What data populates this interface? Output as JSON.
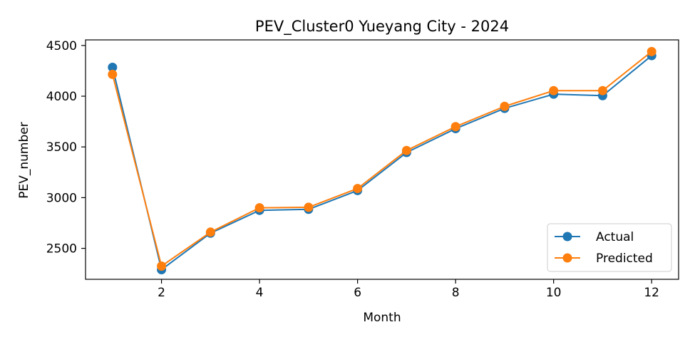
{
  "chart_data": {
    "type": "line",
    "title": "PEV_Cluster0 Yueyang City - 2024",
    "xlabel": "Month",
    "ylabel": "PEV_number",
    "x": [
      1,
      2,
      3,
      4,
      5,
      6,
      7,
      8,
      9,
      10,
      11,
      12
    ],
    "xlim": [
      0.45,
      12.55
    ],
    "ylim": [
      2195,
      4555
    ],
    "xticks": [
      2,
      4,
      6,
      8,
      10,
      12
    ],
    "yticks": [
      2500,
      3000,
      3500,
      4000,
      4500
    ],
    "grid": false,
    "legend_position": "lower-right",
    "series": [
      {
        "name": "Actual",
        "color": "#1f77b4",
        "values": [
          4285,
          2290,
          2650,
          2875,
          2885,
          3070,
          3445,
          3680,
          3880,
          4020,
          4005,
          4400
        ]
      },
      {
        "name": "Predicted",
        "color": "#ff7f0e",
        "values": [
          4215,
          2325,
          2660,
          2900,
          2905,
          3090,
          3465,
          3700,
          3900,
          4055,
          4055,
          4440
        ]
      }
    ]
  }
}
